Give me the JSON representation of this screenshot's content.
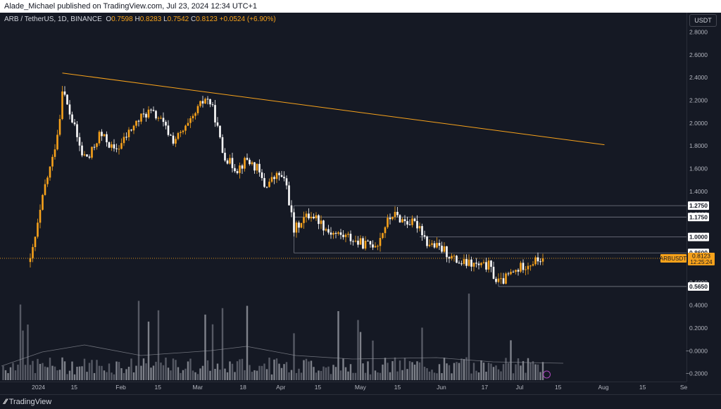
{
  "header": {
    "publisher_line": "Alade_Michael published on TradingView.com, Jul 23, 2024 12:34 UTC+1"
  },
  "legend": {
    "symbol": "ARB / TetherUS, 1D, BINANCE",
    "open_label": "O",
    "open": "0.7598",
    "high_label": "H",
    "high": "0.8283",
    "low_label": "L",
    "low": "0.7542",
    "close_label": "C",
    "close": "0.8123",
    "change": "+0.0524 (+6.90%)"
  },
  "currency_button": "USDT",
  "footer": {
    "brand": "TradingView"
  },
  "colors": {
    "up": "#f7a21b",
    "down": "#ffffff",
    "trendline": "#f7a21b",
    "background": "#151924",
    "level": "#787b86"
  },
  "chart_data": {
    "type": "candlestick",
    "title": "ARB / TetherUS, 1D, BINANCE",
    "y_ticks": [
      "2.8000",
      "2.6000",
      "2.4000",
      "2.2000",
      "2.0000",
      "1.8000",
      "1.6000",
      "1.4000",
      "1.2000",
      "1.0000",
      "0.8000",
      "0.6000",
      "0.4000",
      "0.2000",
      "−0.0000",
      "−0.2000"
    ],
    "y_range": [
      -0.27,
      2.97
    ],
    "x_ticks": [
      {
        "label": "2024",
        "pos": 0.056
      },
      {
        "label": "15",
        "pos": 0.108
      },
      {
        "label": "Feb",
        "pos": 0.176
      },
      {
        "label": "15",
        "pos": 0.23
      },
      {
        "label": "Mar",
        "pos": 0.288
      },
      {
        "label": "18",
        "pos": 0.354
      },
      {
        "label": "Apr",
        "pos": 0.409
      },
      {
        "label": "15",
        "pos": 0.463
      },
      {
        "label": "May",
        "pos": 0.525
      },
      {
        "label": "15",
        "pos": 0.579
      },
      {
        "label": "Jun",
        "pos": 0.643
      },
      {
        "label": "17",
        "pos": 0.706
      },
      {
        "label": "Jul",
        "pos": 0.757
      },
      {
        "label": "15",
        "pos": 0.813
      },
      {
        "label": "Aug",
        "pos": 0.879
      },
      {
        "label": "15",
        "pos": 0.936
      },
      {
        "label": "Se",
        "pos": 0.996
      }
    ],
    "price_labels": [
      {
        "value": 1.275,
        "text": "1.2750"
      },
      {
        "value": 1.175,
        "text": "1.1750"
      },
      {
        "value": 1.0,
        "text": "1.0000"
      },
      {
        "value": 0.86,
        "text": "0.8600"
      },
      {
        "value": 0.565,
        "text": "0.5650"
      }
    ],
    "current_price": {
      "symbol": "ARBUSDT",
      "value": 0.8123,
      "text": "0.8123",
      "countdown": "12:25:24"
    },
    "levels": [
      {
        "value": 1.275,
        "x_start": "Apr 13"
      },
      {
        "value": 1.175,
        "x_start": "Apr 13"
      },
      {
        "value": 1.0,
        "x_start": "Jun 3"
      },
      {
        "value": 0.86,
        "x_start": "Apr 13"
      },
      {
        "value": 0.565,
        "x_start": "Jul 5"
      }
    ],
    "trendline": {
      "start": {
        "date": "Jan 10",
        "value": 2.44
      },
      "end": {
        "date": "Aug 17",
        "value": 1.81
      }
    },
    "close_path": [
      [
        "Dec 28",
        0.78
      ],
      [
        "Dec 31",
        1.1
      ],
      [
        "Jan 3",
        1.45
      ],
      [
        "Jan 6",
        1.68
      ],
      [
        "Jan 9",
        2.05
      ],
      [
        "Jan 10",
        2.32
      ],
      [
        "Jan 12",
        2.15
      ],
      [
        "Jan 15",
        1.95
      ],
      [
        "Jan 18",
        1.72
      ],
      [
        "Jan 21",
        1.7
      ],
      [
        "Jan 25",
        1.9
      ],
      [
        "Jan 28",
        1.85
      ],
      [
        "Jan 31",
        1.75
      ],
      [
        "Feb 3",
        1.82
      ],
      [
        "Feb 7",
        1.95
      ],
      [
        "Feb 11",
        2.05
      ],
      [
        "Feb 14",
        2.1
      ],
      [
        "Feb 18",
        2.05
      ],
      [
        "Feb 21",
        1.95
      ],
      [
        "Feb 24",
        1.85
      ],
      [
        "Feb 27",
        1.9
      ],
      [
        "Mar 2",
        2.0
      ],
      [
        "Mar 5",
        2.12
      ],
      [
        "Mar 8",
        2.22
      ],
      [
        "Mar 10",
        2.18
      ],
      [
        "Mar 12",
        2.05
      ],
      [
        "Mar 15",
        1.75
      ],
      [
        "Mar 18",
        1.65
      ],
      [
        "Mar 21",
        1.6
      ],
      [
        "Mar 25",
        1.68
      ],
      [
        "Mar 29",
        1.6
      ],
      [
        "Apr 1",
        1.45
      ],
      [
        "Apr 4",
        1.5
      ],
      [
        "Apr 7",
        1.55
      ],
      [
        "Apr 10",
        1.45
      ],
      [
        "Apr 13",
        1.05
      ],
      [
        "Apr 16",
        1.15
      ],
      [
        "Apr 20",
        1.2
      ],
      [
        "Apr 23",
        1.15
      ],
      [
        "Apr 27",
        1.05
      ],
      [
        "May 1",
        1.02
      ],
      [
        "May 5",
        1.0
      ],
      [
        "May 9",
        0.95
      ],
      [
        "May 13",
        0.93
      ],
      [
        "May 17",
        0.95
      ],
      [
        "May 20",
        1.1
      ],
      [
        "May 23",
        1.2
      ],
      [
        "May 27",
        1.15
      ],
      [
        "May 31",
        1.12
      ],
      [
        "Jun 3",
        1.1
      ],
      [
        "Jun 6",
        0.95
      ],
      [
        "Jun 9",
        0.92
      ],
      [
        "Jun 13",
        0.88
      ],
      [
        "Jun 17",
        0.8
      ],
      [
        "Jun 20",
        0.77
      ],
      [
        "Jun 24",
        0.76
      ],
      [
        "Jun 28",
        0.74
      ],
      [
        "Jul 1",
        0.75
      ],
      [
        "Jul 4",
        0.62
      ],
      [
        "Jul 6",
        0.6
      ],
      [
        "Jul 9",
        0.66
      ],
      [
        "Jul 12",
        0.7
      ],
      [
        "Jul 15",
        0.75
      ],
      [
        "Jul 19",
        0.78
      ],
      [
        "Jul 23",
        0.8123
      ]
    ],
    "volume": "histogram of daily volume bars with moving average line (values not labeled)"
  }
}
